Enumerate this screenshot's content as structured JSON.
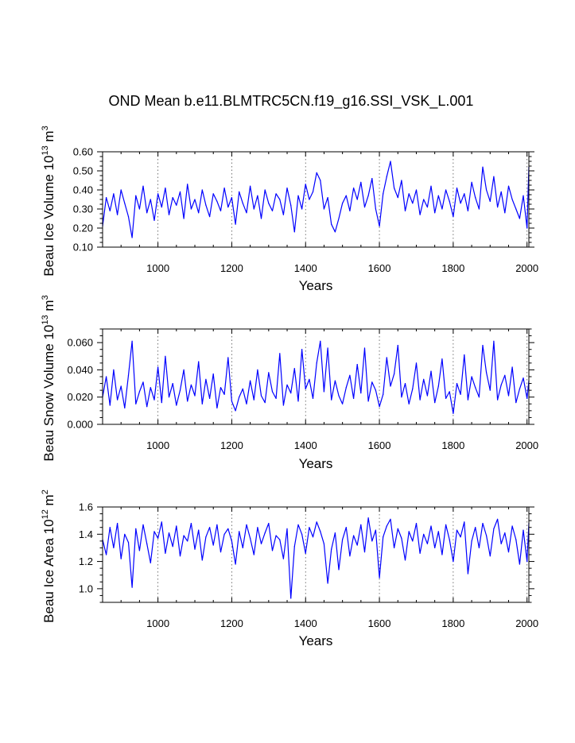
{
  "title": "OND Mean b.e11.BLMTRC5CN.f19_g16.SSI_VSK_L.001",
  "chart_data": [
    {
      "type": "line",
      "ylabel": {
        "main": "Beau Ice Volume 10",
        "exp": "13",
        "unit": " m",
        "unit_exp": "3"
      },
      "xlabel": "Years",
      "xlim": [
        850,
        2005
      ],
      "ylim": [
        0.1,
        0.6
      ],
      "xticks": [
        "1000",
        "1200",
        "1400",
        "1600",
        "1800",
        "2000"
      ],
      "yticks": [
        "0.10",
        "0.20",
        "0.30",
        "0.40",
        "0.50",
        "0.60"
      ],
      "color": "#0000ff",
      "grid": "dotted vertical at x ticks",
      "series": [
        {
          "x": [
            850,
            860,
            870,
            880,
            890,
            900,
            910,
            920,
            930,
            940,
            950,
            960,
            970,
            980,
            990,
            1000,
            1010,
            1020,
            1030,
            1040,
            1050,
            1060,
            1070,
            1080,
            1090,
            1100,
            1110,
            1120,
            1130,
            1140,
            1150,
            1160,
            1170,
            1180,
            1190,
            1200,
            1210,
            1220,
            1230,
            1240,
            1250,
            1260,
            1270,
            1280,
            1290,
            1300,
            1310,
            1320,
            1330,
            1340,
            1350,
            1360,
            1370,
            1380,
            1390,
            1400,
            1410,
            1420,
            1430,
            1440,
            1450,
            1460,
            1470,
            1480,
            1490,
            1500,
            1510,
            1520,
            1530,
            1540,
            1550,
            1560,
            1570,
            1580,
            1590,
            1600,
            1610,
            1620,
            1630,
            1640,
            1650,
            1660,
            1670,
            1680,
            1690,
            1700,
            1710,
            1720,
            1730,
            1740,
            1750,
            1760,
            1770,
            1780,
            1790,
            1800,
            1810,
            1820,
            1830,
            1840,
            1850,
            1860,
            1870,
            1880,
            1890,
            1900,
            1910,
            1920,
            1930,
            1940,
            1950,
            1960,
            1970,
            1980,
            1990,
            2000,
            2005
          ],
          "y": [
            0.21,
            0.36,
            0.29,
            0.38,
            0.27,
            0.4,
            0.33,
            0.26,
            0.15,
            0.37,
            0.3,
            0.42,
            0.28,
            0.35,
            0.24,
            0.38,
            0.31,
            0.41,
            0.27,
            0.36,
            0.32,
            0.39,
            0.25,
            0.43,
            0.3,
            0.35,
            0.28,
            0.4,
            0.32,
            0.26,
            0.38,
            0.34,
            0.29,
            0.41,
            0.31,
            0.36,
            0.22,
            0.39,
            0.33,
            0.28,
            0.42,
            0.3,
            0.37,
            0.25,
            0.4,
            0.33,
            0.29,
            0.38,
            0.35,
            0.27,
            0.41,
            0.32,
            0.18,
            0.37,
            0.3,
            0.43,
            0.35,
            0.39,
            0.49,
            0.45,
            0.3,
            0.36,
            0.22,
            0.18,
            0.25,
            0.33,
            0.37,
            0.29,
            0.41,
            0.35,
            0.44,
            0.31,
            0.37,
            0.46,
            0.3,
            0.21,
            0.38,
            0.47,
            0.55,
            0.41,
            0.36,
            0.45,
            0.29,
            0.38,
            0.33,
            0.4,
            0.27,
            0.35,
            0.31,
            0.42,
            0.28,
            0.37,
            0.3,
            0.4,
            0.34,
            0.26,
            0.41,
            0.33,
            0.38,
            0.29,
            0.44,
            0.36,
            0.3,
            0.52,
            0.4,
            0.34,
            0.47,
            0.31,
            0.39,
            0.28,
            0.42,
            0.35,
            0.3,
            0.25,
            0.37,
            0.2,
            0.52
          ]
        }
      ]
    },
    {
      "type": "line",
      "ylabel": {
        "main": "Beau Snow Volume 10",
        "exp": "13",
        "unit": " m",
        "unit_exp": "3"
      },
      "xlabel": "Years",
      "xlim": [
        850,
        2005
      ],
      "ylim": [
        0.0,
        0.07
      ],
      "yticks_values": [
        0.0,
        0.02,
        0.04,
        0.06
      ],
      "xticks": [
        "1000",
        "1200",
        "1400",
        "1600",
        "1800",
        "2000"
      ],
      "yticks": [
        "0.000",
        "0.020",
        "0.040",
        "0.060"
      ],
      "color": "#0000ff",
      "grid": "dotted vertical at x ticks",
      "series": [
        {
          "x": [
            850,
            860,
            870,
            880,
            890,
            900,
            910,
            920,
            930,
            940,
            950,
            960,
            970,
            980,
            990,
            1000,
            1010,
            1020,
            1030,
            1040,
            1050,
            1060,
            1070,
            1080,
            1090,
            1100,
            1110,
            1120,
            1130,
            1140,
            1150,
            1160,
            1170,
            1180,
            1190,
            1200,
            1210,
            1220,
            1230,
            1240,
            1250,
            1260,
            1270,
            1280,
            1290,
            1300,
            1310,
            1320,
            1330,
            1340,
            1350,
            1360,
            1370,
            1380,
            1390,
            1400,
            1410,
            1420,
            1430,
            1440,
            1450,
            1460,
            1470,
            1480,
            1490,
            1500,
            1510,
            1520,
            1530,
            1540,
            1550,
            1560,
            1570,
            1580,
            1590,
            1600,
            1610,
            1620,
            1630,
            1640,
            1650,
            1660,
            1670,
            1680,
            1690,
            1700,
            1710,
            1720,
            1730,
            1740,
            1750,
            1760,
            1770,
            1780,
            1790,
            1800,
            1810,
            1820,
            1830,
            1840,
            1850,
            1860,
            1870,
            1880,
            1890,
            1900,
            1910,
            1920,
            1930,
            1940,
            1950,
            1960,
            1970,
            1980,
            1990,
            2000,
            2005
          ],
          "y": [
            0.02,
            0.035,
            0.014,
            0.04,
            0.018,
            0.028,
            0.012,
            0.036,
            0.061,
            0.015,
            0.024,
            0.031,
            0.013,
            0.027,
            0.018,
            0.042,
            0.016,
            0.05,
            0.02,
            0.03,
            0.014,
            0.025,
            0.04,
            0.017,
            0.029,
            0.021,
            0.046,
            0.015,
            0.033,
            0.019,
            0.037,
            0.012,
            0.027,
            0.022,
            0.049,
            0.017,
            0.01,
            0.02,
            0.026,
            0.015,
            0.032,
            0.018,
            0.04,
            0.021,
            0.016,
            0.038,
            0.024,
            0.019,
            0.052,
            0.014,
            0.029,
            0.023,
            0.041,
            0.017,
            0.055,
            0.026,
            0.033,
            0.019,
            0.045,
            0.061,
            0.024,
            0.056,
            0.018,
            0.032,
            0.021,
            0.015,
            0.027,
            0.036,
            0.019,
            0.044,
            0.023,
            0.056,
            0.017,
            0.031,
            0.025,
            0.013,
            0.022,
            0.049,
            0.028,
            0.037,
            0.058,
            0.02,
            0.03,
            0.015,
            0.026,
            0.045,
            0.018,
            0.033,
            0.021,
            0.039,
            0.016,
            0.028,
            0.048,
            0.019,
            0.024,
            0.008,
            0.03,
            0.022,
            0.051,
            0.018,
            0.035,
            0.027,
            0.02,
            0.058,
            0.038,
            0.025,
            0.061,
            0.018,
            0.029,
            0.036,
            0.021,
            0.042,
            0.016,
            0.026,
            0.034,
            0.019,
            0.032
          ]
        }
      ]
    },
    {
      "type": "line",
      "ylabel": {
        "main": "Beau Ice Area 10",
        "exp": "12",
        "unit": " m",
        "unit_exp": "2"
      },
      "xlabel": "Years",
      "xlim": [
        850,
        2005
      ],
      "ylim": [
        0.9,
        1.6
      ],
      "yticks_values": [
        1.0,
        1.2,
        1.4,
        1.6
      ],
      "xticks": [
        "1000",
        "1200",
        "1400",
        "1600",
        "1800",
        "2000"
      ],
      "yticks": [
        "1.0",
        "1.2",
        "1.4",
        "1.6"
      ],
      "color": "#0000ff",
      "grid": "dotted vertical at x ticks",
      "series": [
        {
          "x": [
            850,
            860,
            870,
            880,
            890,
            900,
            910,
            920,
            930,
            940,
            950,
            960,
            970,
            980,
            990,
            1000,
            1010,
            1020,
            1030,
            1040,
            1050,
            1060,
            1070,
            1080,
            1090,
            1100,
            1110,
            1120,
            1130,
            1140,
            1150,
            1160,
            1170,
            1180,
            1190,
            1200,
            1210,
            1220,
            1230,
            1240,
            1250,
            1260,
            1270,
            1280,
            1290,
            1300,
            1310,
            1320,
            1330,
            1340,
            1350,
            1360,
            1370,
            1380,
            1390,
            1400,
            1410,
            1420,
            1430,
            1440,
            1450,
            1460,
            1470,
            1480,
            1490,
            1500,
            1510,
            1520,
            1530,
            1540,
            1550,
            1560,
            1570,
            1580,
            1590,
            1600,
            1610,
            1620,
            1630,
            1640,
            1650,
            1660,
            1670,
            1680,
            1690,
            1700,
            1710,
            1720,
            1730,
            1740,
            1750,
            1760,
            1770,
            1780,
            1790,
            1800,
            1810,
            1820,
            1830,
            1840,
            1850,
            1860,
            1870,
            1880,
            1890,
            1900,
            1910,
            1920,
            1930,
            1940,
            1950,
            1960,
            1970,
            1980,
            1990,
            2000,
            2005
          ],
          "y": [
            1.36,
            1.25,
            1.45,
            1.3,
            1.48,
            1.22,
            1.4,
            1.34,
            1.01,
            1.44,
            1.28,
            1.47,
            1.33,
            1.19,
            1.42,
            1.37,
            1.49,
            1.26,
            1.41,
            1.31,
            1.46,
            1.24,
            1.39,
            1.35,
            1.48,
            1.29,
            1.43,
            1.21,
            1.38,
            1.45,
            1.32,
            1.47,
            1.27,
            1.4,
            1.44,
            1.35,
            1.18,
            1.42,
            1.3,
            1.47,
            1.37,
            1.25,
            1.45,
            1.33,
            1.41,
            1.48,
            1.28,
            1.39,
            1.36,
            1.22,
            1.44,
            0.93,
            1.31,
            1.47,
            1.4,
            1.26,
            1.45,
            1.38,
            1.49,
            1.42,
            1.33,
            1.04,
            1.29,
            1.41,
            1.14,
            1.36,
            1.45,
            1.24,
            1.39,
            1.32,
            1.47,
            1.27,
            1.52,
            1.35,
            1.43,
            1.08,
            1.38,
            1.46,
            1.51,
            1.3,
            1.44,
            1.37,
            1.21,
            1.42,
            1.35,
            1.48,
            1.26,
            1.4,
            1.33,
            1.46,
            1.3,
            1.42,
            1.25,
            1.47,
            1.36,
            1.2,
            1.43,
            1.38,
            1.49,
            1.11,
            1.35,
            1.45,
            1.3,
            1.48,
            1.39,
            1.24,
            1.44,
            1.51,
            1.33,
            1.41,
            1.27,
            1.46,
            1.36,
            1.18,
            1.43,
            1.2,
            1.48
          ]
        }
      ]
    }
  ]
}
